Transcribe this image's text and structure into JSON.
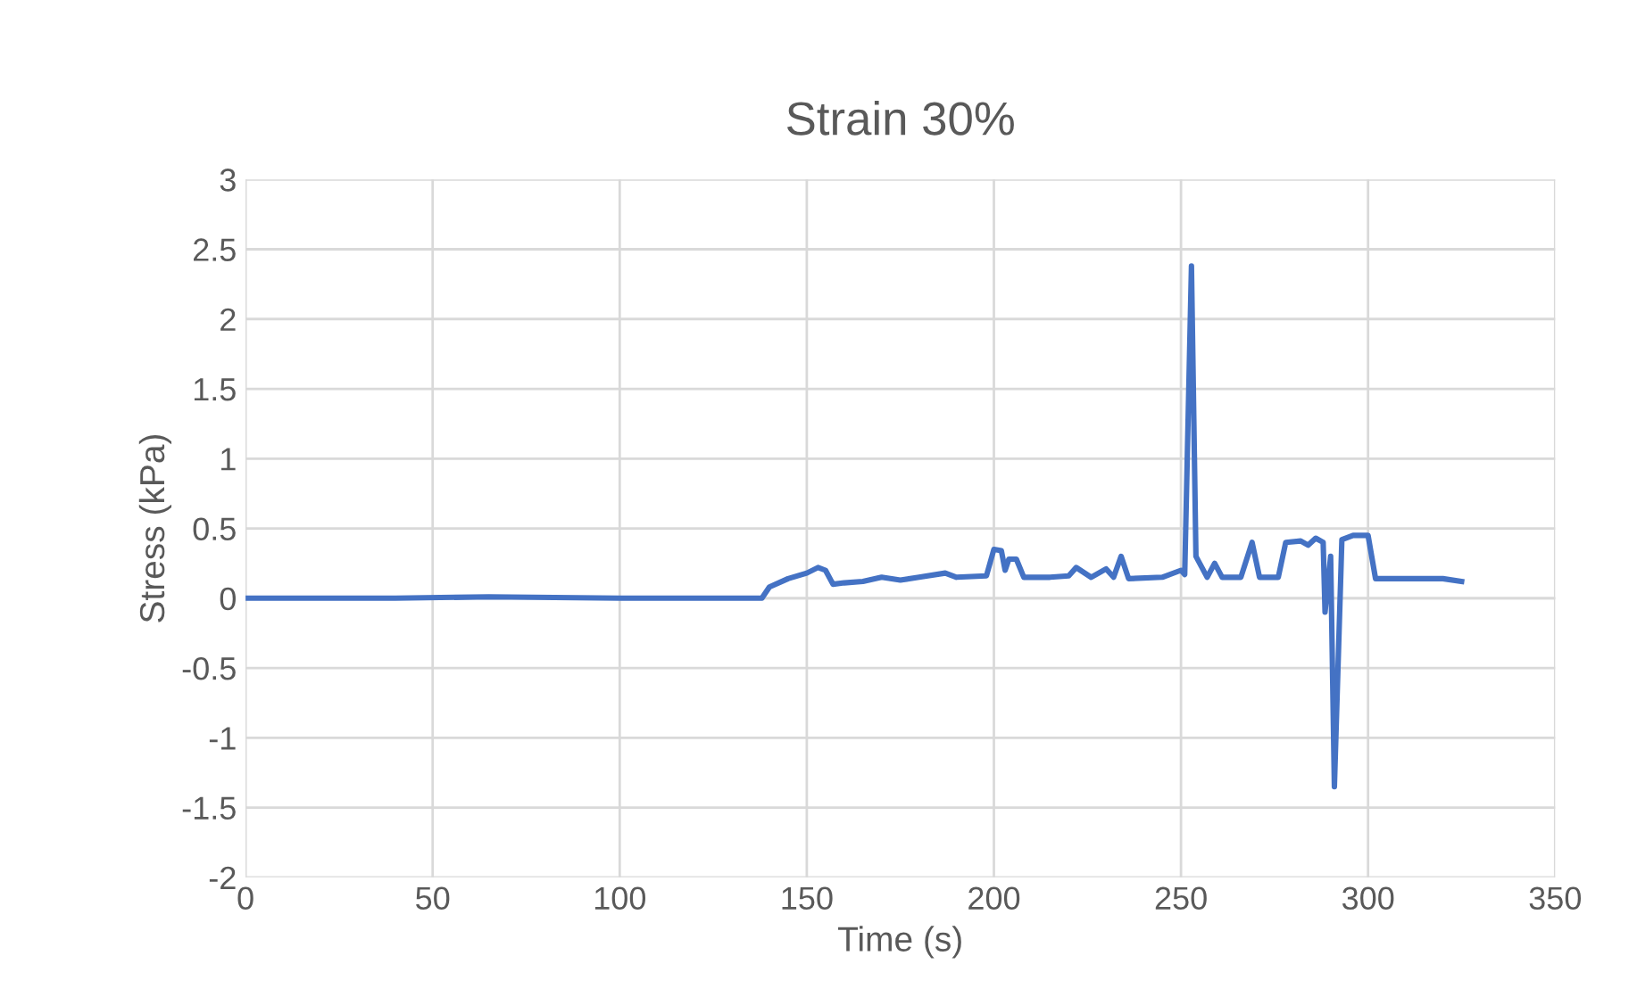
{
  "chart_data": {
    "type": "line",
    "title": "Strain 30%",
    "xlabel": "Time (s)",
    "ylabel": "Stress (kPa)",
    "series": [
      {
        "color": "#4472c4",
        "x": [
          0,
          20,
          40,
          65,
          100,
          138,
          140,
          145,
          150,
          153,
          155,
          157,
          160,
          165,
          170,
          175,
          180,
          187,
          190,
          198,
          200,
          202,
          203,
          204,
          206,
          208,
          215,
          220,
          222,
          226,
          230,
          232,
          234,
          236,
          245,
          250,
          251,
          252.8,
          254,
          257,
          259,
          261,
          266,
          269,
          271,
          276,
          278,
          282,
          284,
          286,
          288,
          288.5,
          290,
          291,
          293,
          296,
          300,
          302,
          320,
          325
        ],
        "values": [
          0,
          0,
          0,
          0.01,
          0,
          0,
          0.08,
          0.14,
          0.18,
          0.22,
          0.2,
          0.1,
          0.11,
          0.12,
          0.15,
          0.13,
          0.15,
          0.18,
          0.15,
          0.16,
          0.35,
          0.34,
          0.2,
          0.28,
          0.28,
          0.15,
          0.15,
          0.16,
          0.22,
          0.15,
          0.21,
          0.15,
          0.3,
          0.14,
          0.15,
          0.2,
          0.17,
          2.38,
          0.3,
          0.15,
          0.25,
          0.15,
          0.15,
          0.4,
          0.15,
          0.15,
          0.4,
          0.41,
          0.38,
          0.43,
          0.4,
          -0.1,
          0.3,
          -1.35,
          0.42,
          0.45,
          0.45,
          0.14,
          0.14,
          0.12
        ]
      }
    ],
    "xlim": [
      0,
      350
    ],
    "xticks": [
      0,
      50,
      100,
      150,
      200,
      250,
      300,
      350
    ],
    "ylim": [
      -2,
      3
    ],
    "yticks": [
      -2,
      -1.5,
      -1,
      -0.5,
      0,
      0.5,
      1,
      1.5,
      2,
      2.5,
      3
    ],
    "grid": true,
    "marker": "none",
    "line_style": "solid"
  }
}
